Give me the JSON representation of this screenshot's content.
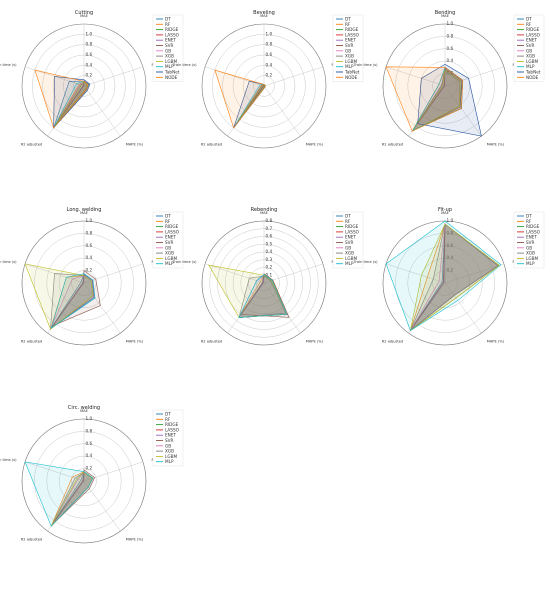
{
  "radar_style": {
    "axis_labels": [
      "MAE",
      "RMSE",
      "MAPE (%)",
      "R2 adjusted",
      "Train time (s)"
    ],
    "grid_color": "#bbbbbb",
    "text_color": "#333333"
  },
  "model_colors": {
    "DT": "#1f77b4",
    "RF": "#ff7f0e",
    "RIDGE": "#2ca02c",
    "LASSO": "#d62728",
    "ENET": "#9467bd",
    "SVR": "#8c564b",
    "GB": "#e377c2",
    "XGB": "#7f7f7f",
    "LGBM": "#bcbd22",
    "MLP": "#17becf",
    "TabNet": "#1f4e9c",
    "NODE": "#ff7f0e"
  },
  "chart_data": [
    {
      "type": "radar",
      "title": "Cutting",
      "axes": [
        "MAE",
        "RMSE",
        "MAPE (%)",
        "R2 adjusted",
        "Train time (s)"
      ],
      "rticks": [
        0.2,
        0.4,
        0.6,
        0.8,
        1.0
      ],
      "rlim": [
        0,
        1.2
      ],
      "legend": "right",
      "series": [
        {
          "name": "DT",
          "values": [
            0.08,
            0.08,
            0.07,
            1.0,
            0.3
          ]
        },
        {
          "name": "RF",
          "values": [
            0.07,
            0.06,
            0.06,
            1.0,
            0.1
          ]
        },
        {
          "name": "RIDGE",
          "values": [
            0.08,
            0.08,
            0.08,
            1.0,
            0.01
          ]
        },
        {
          "name": "LASSO",
          "values": [
            0.08,
            0.08,
            0.08,
            1.0,
            0.01
          ]
        },
        {
          "name": "ENET",
          "values": [
            0.08,
            0.08,
            0.08,
            1.0,
            0.01
          ]
        },
        {
          "name": "SVR",
          "values": [
            0.1,
            0.1,
            0.09,
            1.0,
            0.02
          ]
        },
        {
          "name": "GB",
          "values": [
            0.07,
            0.07,
            0.06,
            1.0,
            0.08
          ]
        },
        {
          "name": "XGB",
          "values": [
            0.07,
            0.07,
            0.06,
            1.0,
            0.06
          ]
        },
        {
          "name": "LGBM",
          "values": [
            0.07,
            0.07,
            0.06,
            1.0,
            0.05
          ]
        },
        {
          "name": "MLP",
          "values": [
            0.09,
            0.09,
            0.08,
            1.0,
            0.15
          ]
        },
        {
          "name": "TabNet",
          "values": [
            0.12,
            0.12,
            0.11,
            1.0,
            0.6
          ]
        },
        {
          "name": "NODE",
          "values": [
            0.09,
            0.08,
            0.08,
            1.0,
            1.0
          ]
        }
      ]
    },
    {
      "type": "radar",
      "title": "Beveling",
      "axes": [
        "MAE",
        "RMSE",
        "MAPE (%)",
        "R2 adjusted",
        "Train time (s)"
      ],
      "rticks": [
        0.2,
        0.4,
        0.6,
        0.8,
        1.0
      ],
      "rlim": [
        0,
        1.2
      ],
      "legend": "right",
      "series": [
        {
          "name": "DT",
          "values": [
            0.02,
            0.02,
            0.02,
            1.0,
            0.05
          ]
        },
        {
          "name": "RF",
          "values": [
            0.02,
            0.02,
            0.02,
            1.0,
            0.05
          ]
        },
        {
          "name": "RIDGE",
          "values": [
            0.02,
            0.02,
            0.02,
            1.0,
            0.01
          ]
        },
        {
          "name": "LASSO",
          "values": [
            0.02,
            0.02,
            0.02,
            1.0,
            0.01
          ]
        },
        {
          "name": "ENET",
          "values": [
            0.02,
            0.02,
            0.02,
            1.0,
            0.01
          ]
        },
        {
          "name": "SVR",
          "values": [
            0.02,
            0.02,
            0.02,
            1.0,
            0.01
          ]
        },
        {
          "name": "GB",
          "values": [
            0.02,
            0.02,
            0.02,
            1.0,
            0.04
          ]
        },
        {
          "name": "XGB",
          "values": [
            0.02,
            0.02,
            0.02,
            1.0,
            0.03
          ]
        },
        {
          "name": "LGBM",
          "values": [
            0.02,
            0.02,
            0.02,
            1.0,
            0.03
          ]
        },
        {
          "name": "MLP",
          "values": [
            0.03,
            0.03,
            0.03,
            1.0,
            0.08
          ]
        },
        {
          "name": "TabNet",
          "values": [
            0.03,
            0.03,
            0.03,
            1.0,
            0.3
          ]
        },
        {
          "name": "NODE",
          "values": [
            0.03,
            0.03,
            0.03,
            1.0,
            1.0
          ]
        }
      ]
    },
    {
      "type": "radar",
      "title": "Bending",
      "axes": [
        "MAE",
        "RMSE",
        "MAPE (%)",
        "R2 adjusted",
        "Train time (s)"
      ],
      "rticks": [
        0.2,
        0.4,
        0.6,
        0.8,
        1.0
      ],
      "rlim": [
        0,
        1.0
      ],
      "legend": "right",
      "series": [
        {
          "name": "DT",
          "values": [
            0.3,
            0.3,
            0.4,
            0.9,
            0.05
          ]
        },
        {
          "name": "RF",
          "values": [
            0.25,
            0.25,
            0.4,
            0.9,
            0.1
          ]
        },
        {
          "name": "RIDGE",
          "values": [
            0.3,
            0.3,
            0.45,
            0.88,
            0.01
          ]
        },
        {
          "name": "LASSO",
          "values": [
            0.3,
            0.3,
            0.45,
            0.88,
            0.01
          ]
        },
        {
          "name": "ENET",
          "values": [
            0.3,
            0.3,
            0.45,
            0.88,
            0.01
          ]
        },
        {
          "name": "SVR",
          "values": [
            0.28,
            0.28,
            0.42,
            0.9,
            0.02
          ]
        },
        {
          "name": "GB",
          "values": [
            0.25,
            0.25,
            0.4,
            0.9,
            0.06
          ]
        },
        {
          "name": "XGB",
          "values": [
            0.25,
            0.25,
            0.4,
            0.9,
            0.05
          ]
        },
        {
          "name": "LGBM",
          "values": [
            0.26,
            0.26,
            0.4,
            0.9,
            0.04
          ]
        },
        {
          "name": "MLP",
          "values": [
            0.3,
            0.3,
            0.45,
            0.88,
            0.1
          ]
        },
        {
          "name": "TabNet",
          "values": [
            0.35,
            0.4,
            1.0,
            0.75,
            0.4
          ]
        },
        {
          "name": "NODE",
          "values": [
            0.3,
            0.3,
            0.45,
            0.9,
            1.0
          ]
        }
      ]
    },
    {
      "type": "radar",
      "title": "Long. welding",
      "axes": [
        "MAE",
        "RMSE",
        "MAPE (%)",
        "R2 adjusted",
        "Train time (s)"
      ],
      "rticks": [
        0.2,
        0.4,
        0.6,
        0.8,
        1.0
      ],
      "rlim": [
        0,
        1.0
      ],
      "legend": "right",
      "series": [
        {
          "name": "DT",
          "values": [
            0.15,
            0.15,
            0.3,
            0.9,
            0.05
          ]
        },
        {
          "name": "RF",
          "values": [
            0.12,
            0.12,
            0.25,
            0.92,
            0.3
          ]
        },
        {
          "name": "RIDGE",
          "values": [
            0.14,
            0.14,
            0.28,
            0.9,
            0.01
          ]
        },
        {
          "name": "LASSO",
          "values": [
            0.14,
            0.14,
            0.28,
            0.9,
            0.01
          ]
        },
        {
          "name": "ENET",
          "values": [
            0.14,
            0.14,
            0.28,
            0.9,
            0.01
          ]
        },
        {
          "name": "SVR",
          "values": [
            0.2,
            0.2,
            0.45,
            0.85,
            0.02
          ]
        },
        {
          "name": "GB",
          "values": [
            0.12,
            0.12,
            0.25,
            0.92,
            0.2
          ]
        },
        {
          "name": "XGB",
          "values": [
            0.12,
            0.12,
            0.25,
            0.92,
            0.5
          ]
        },
        {
          "name": "LGBM",
          "values": [
            0.12,
            0.12,
            0.25,
            0.92,
            1.0
          ]
        },
        {
          "name": "MLP",
          "values": [
            0.15,
            0.15,
            0.3,
            0.9,
            0.3
          ]
        }
      ]
    },
    {
      "type": "radar",
      "title": "Rebending",
      "axes": [
        "MAE",
        "RMSE",
        "MAPE (%)",
        "R2 adjusted",
        "Train time (s)"
      ],
      "rticks": [
        0.1,
        0.2,
        0.3,
        0.4,
        0.5,
        0.6,
        0.7,
        0.8
      ],
      "rlim": [
        0,
        0.8
      ],
      "legend": "right",
      "series": [
        {
          "name": "DT",
          "values": [
            0.1,
            0.1,
            0.5,
            0.55,
            0.02
          ]
        },
        {
          "name": "RF",
          "values": [
            0.1,
            0.12,
            0.5,
            0.55,
            0.05
          ]
        },
        {
          "name": "RIDGE",
          "values": [
            0.1,
            0.1,
            0.5,
            0.55,
            0.01
          ]
        },
        {
          "name": "LASSO",
          "values": [
            0.1,
            0.1,
            0.5,
            0.55,
            0.01
          ]
        },
        {
          "name": "ENET",
          "values": [
            0.1,
            0.1,
            0.5,
            0.55,
            0.01
          ]
        },
        {
          "name": "SVR",
          "values": [
            0.12,
            0.12,
            0.55,
            0.5,
            0.02
          ]
        },
        {
          "name": "GB",
          "values": [
            0.09,
            0.09,
            0.48,
            0.55,
            0.1
          ]
        },
        {
          "name": "XGB",
          "values": [
            0.09,
            0.09,
            0.48,
            0.55,
            0.2
          ]
        },
        {
          "name": "LGBM",
          "values": [
            0.1,
            0.1,
            0.5,
            0.55,
            0.75
          ]
        },
        {
          "name": "MLP",
          "values": [
            0.11,
            0.11,
            0.5,
            0.55,
            0.1
          ]
        }
      ]
    },
    {
      "type": "radar",
      "title": "Fit-up",
      "axes": [
        "MAE",
        "RMSE",
        "MAPE (%)",
        "R2 adjusted",
        "Train time (s)"
      ],
      "rticks": [
        0.2,
        0.4,
        0.6,
        0.8,
        1.0
      ],
      "rlim": [
        0,
        1.0
      ],
      "legend": "right",
      "series": [
        {
          "name": "DT",
          "values": [
            0.95,
            0.9,
            0.25,
            0.95,
            0.05
          ]
        },
        {
          "name": "RF",
          "values": [
            0.95,
            0.92,
            0.3,
            0.95,
            0.3
          ]
        },
        {
          "name": "RIDGE",
          "values": [
            0.95,
            0.9,
            0.25,
            0.95,
            0.02
          ]
        },
        {
          "name": "LASSO",
          "values": [
            0.95,
            0.9,
            0.25,
            0.95,
            0.02
          ]
        },
        {
          "name": "ENET",
          "values": [
            0.95,
            0.9,
            0.25,
            0.95,
            0.02
          ]
        },
        {
          "name": "SVR",
          "values": [
            0.95,
            0.9,
            0.25,
            0.95,
            0.03
          ]
        },
        {
          "name": "GB",
          "values": [
            0.95,
            0.9,
            0.25,
            0.95,
            0.1
          ]
        },
        {
          "name": "XGB",
          "values": [
            0.95,
            0.9,
            0.25,
            0.95,
            0.2
          ]
        },
        {
          "name": "LGBM",
          "values": [
            0.95,
            0.92,
            0.3,
            0.95,
            0.4
          ]
        },
        {
          "name": "MLP",
          "values": [
            1.0,
            0.95,
            0.35,
            0.95,
            1.0
          ]
        }
      ]
    },
    {
      "type": "radar",
      "title": "Circ. welding",
      "axes": [
        "MAE",
        "RMSE",
        "MAPE (%)",
        "R2 adjusted",
        "Train time (s)"
      ],
      "rticks": [
        0.2,
        0.4,
        0.6,
        0.8,
        1.0
      ],
      "rlim": [
        0,
        1.0
      ],
      "legend": "right",
      "series": [
        {
          "name": "DT",
          "values": [
            0.15,
            0.15,
            0.12,
            0.9,
            0.05
          ]
        },
        {
          "name": "RF",
          "values": [
            0.15,
            0.15,
            0.12,
            0.9,
            0.2
          ]
        },
        {
          "name": "RIDGE",
          "values": [
            0.15,
            0.15,
            0.12,
            0.9,
            0.01
          ]
        },
        {
          "name": "LASSO",
          "values": [
            0.15,
            0.15,
            0.12,
            0.9,
            0.01
          ]
        },
        {
          "name": "ENET",
          "values": [
            0.15,
            0.15,
            0.12,
            0.9,
            0.01
          ]
        },
        {
          "name": "SVR",
          "values": [
            0.18,
            0.18,
            0.15,
            0.88,
            0.02
          ]
        },
        {
          "name": "GB",
          "values": [
            0.14,
            0.14,
            0.12,
            0.9,
            0.1
          ]
        },
        {
          "name": "XGB",
          "values": [
            0.14,
            0.14,
            0.12,
            0.9,
            0.15
          ]
        },
        {
          "name": "LGBM",
          "values": [
            0.14,
            0.14,
            0.12,
            0.9,
            0.12
          ]
        },
        {
          "name": "MLP",
          "values": [
            0.15,
            0.15,
            0.12,
            0.9,
            1.0
          ]
        }
      ]
    }
  ]
}
